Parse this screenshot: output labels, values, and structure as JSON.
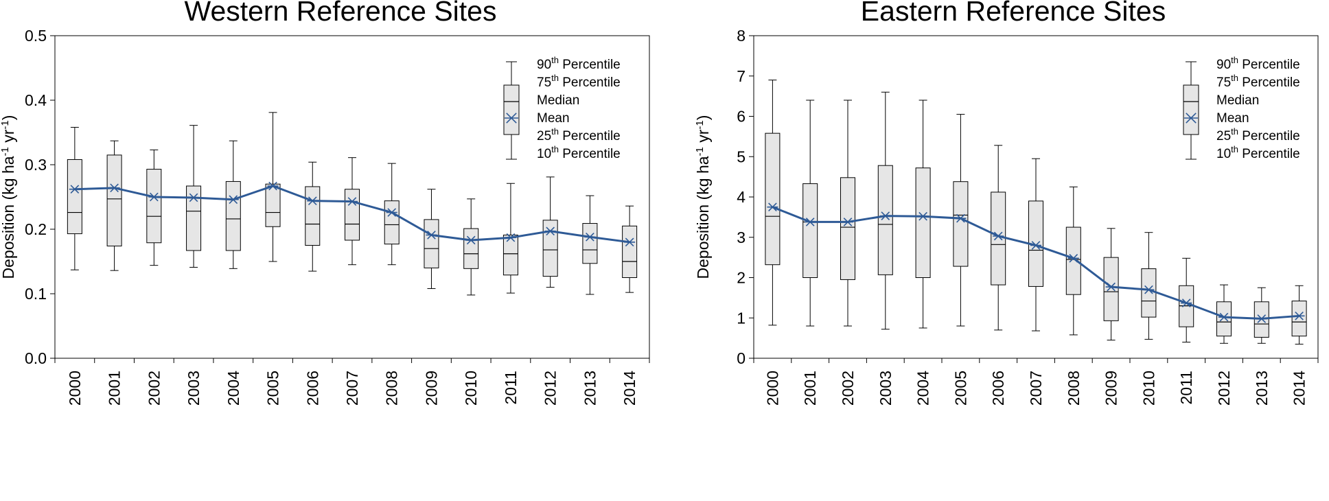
{
  "legend": {
    "items": [
      {
        "main": "90",
        "sup": "th",
        "rest": " Percentile"
      },
      {
        "main": "75",
        "sup": "th",
        "rest": " Percentile"
      },
      {
        "main": "Median",
        "sup": "",
        "rest": ""
      },
      {
        "main": "Mean",
        "sup": "",
        "rest": ""
      },
      {
        "main": "25",
        "sup": "th",
        "rest": " Percentile"
      },
      {
        "main": "10",
        "sup": "th",
        "rest": " Percentile"
      }
    ]
  },
  "colors": {
    "mean_line": "#2e5a96",
    "box_fill": "#e6e6e6",
    "axis": "#000000"
  },
  "chart_data": [
    {
      "type": "box",
      "title": "Western Reference Sites",
      "ylabel": {
        "a": "Deposition (kg ha",
        "b": "-1",
        "c": " yr",
        "d": "-1",
        "e": ")"
      },
      "ylim": [
        0,
        0.5
      ],
      "yticks": [
        0.0,
        0.1,
        0.2,
        0.3,
        0.4,
        0.5
      ],
      "ytick_labels": [
        "0.0",
        "0.1",
        "0.2",
        "0.3",
        "0.4",
        "0.5"
      ],
      "categories": [
        "2000",
        "2001",
        "2002",
        "2003",
        "2004",
        "2005",
        "2006",
        "2007",
        "2008",
        "2009",
        "2010",
        "2011",
        "2012",
        "2013",
        "2014"
      ],
      "series": [
        {
          "name": "90th Percentile",
          "values": [
            0.358,
            0.337,
            0.323,
            0.361,
            0.337,
            0.381,
            0.304,
            0.311,
            0.302,
            0.262,
            0.247,
            0.271,
            0.281,
            0.252,
            0.236
          ]
        },
        {
          "name": "75th Percentile",
          "values": [
            0.308,
            0.315,
            0.293,
            0.267,
            0.274,
            0.27,
            0.266,
            0.262,
            0.244,
            0.215,
            0.201,
            0.191,
            0.214,
            0.209,
            0.205
          ]
        },
        {
          "name": "Median",
          "values": [
            0.226,
            0.247,
            0.22,
            0.228,
            0.216,
            0.226,
            0.208,
            0.208,
            0.207,
            0.17,
            0.162,
            0.162,
            0.168,
            0.168,
            0.15
          ]
        },
        {
          "name": "Mean",
          "values": [
            0.262,
            0.264,
            0.25,
            0.249,
            0.246,
            0.267,
            0.244,
            0.243,
            0.226,
            0.191,
            0.183,
            0.187,
            0.197,
            0.188,
            0.18
          ]
        },
        {
          "name": "25th Percentile",
          "values": [
            0.193,
            0.174,
            0.179,
            0.167,
            0.167,
            0.204,
            0.175,
            0.183,
            0.177,
            0.14,
            0.139,
            0.129,
            0.127,
            0.147,
            0.125
          ]
        },
        {
          "name": "10th Percentile",
          "values": [
            0.137,
            0.136,
            0.144,
            0.141,
            0.139,
            0.15,
            0.135,
            0.145,
            0.145,
            0.108,
            0.098,
            0.101,
            0.11,
            0.099,
            0.102
          ]
        }
      ]
    },
    {
      "type": "box",
      "title": "Eastern Reference Sites",
      "ylabel": {
        "a": "Deposition (kg ha",
        "b": "-1",
        "c": " yr",
        "d": "-1",
        "e": ")"
      },
      "ylim": [
        0,
        8
      ],
      "yticks": [
        0,
        1,
        2,
        3,
        4,
        5,
        6,
        7,
        8
      ],
      "ytick_labels": [
        "0",
        "1",
        "2",
        "3",
        "4",
        "5",
        "6",
        "7",
        "8"
      ],
      "categories": [
        "2000",
        "2001",
        "2002",
        "2003",
        "2004",
        "2005",
        "2006",
        "2007",
        "2008",
        "2009",
        "2010",
        "2011",
        "2012",
        "2013",
        "2014"
      ],
      "series": [
        {
          "name": "90th Percentile",
          "values": [
            6.9,
            6.4,
            6.4,
            6.6,
            6.4,
            6.05,
            5.28,
            4.95,
            4.25,
            3.22,
            3.12,
            2.48,
            1.82,
            1.75,
            1.8
          ]
        },
        {
          "name": "75th Percentile",
          "values": [
            5.58,
            4.33,
            4.48,
            4.78,
            4.72,
            4.38,
            4.12,
            3.9,
            3.25,
            2.5,
            2.22,
            1.8,
            1.4,
            1.4,
            1.42
          ]
        },
        {
          "name": "Median",
          "values": [
            3.52,
            3.38,
            3.25,
            3.32,
            3.52,
            3.55,
            2.82,
            2.68,
            2.45,
            1.65,
            1.42,
            1.3,
            0.9,
            0.85,
            0.9
          ]
        },
        {
          "name": "Mean",
          "values": [
            3.75,
            3.38,
            3.38,
            3.53,
            3.52,
            3.47,
            3.03,
            2.8,
            2.48,
            1.77,
            1.7,
            1.37,
            1.02,
            0.98,
            1.05
          ]
        },
        {
          "name": "25th Percentile",
          "values": [
            2.32,
            2.0,
            1.95,
            2.07,
            2.0,
            2.28,
            1.82,
            1.78,
            1.58,
            0.93,
            1.02,
            0.78,
            0.55,
            0.52,
            0.55
          ]
        },
        {
          "name": "10th Percentile",
          "values": [
            0.82,
            0.8,
            0.8,
            0.72,
            0.75,
            0.8,
            0.7,
            0.68,
            0.58,
            0.45,
            0.47,
            0.4,
            0.37,
            0.37,
            0.35
          ]
        }
      ]
    }
  ]
}
